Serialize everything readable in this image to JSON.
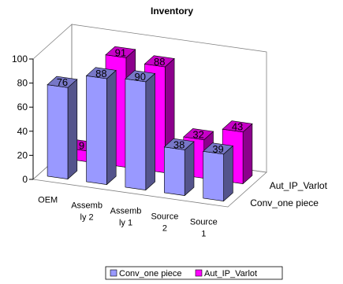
{
  "chart_data": {
    "type": "bar",
    "title": "Inventory",
    "categories": [
      [
        "OEM"
      ],
      [
        "Assemb",
        "ly 2"
      ],
      [
        "Assemb",
        "ly 1"
      ],
      [
        "Source",
        "2"
      ],
      [
        "Source",
        "1"
      ]
    ],
    "series": [
      {
        "name": "Conv_one piece",
        "values": [
          76,
          88,
          90,
          38,
          39
        ],
        "color": "#9999ff"
      },
      {
        "name": "Aut_IP_Varlot",
        "values": [
          9,
          91,
          88,
          32,
          43
        ],
        "color": "#ff00ff"
      }
    ],
    "ylim": [
      0,
      100
    ],
    "yticks": [
      0,
      20,
      40,
      60,
      80,
      100
    ],
    "grid": false,
    "legend": "bottom"
  }
}
